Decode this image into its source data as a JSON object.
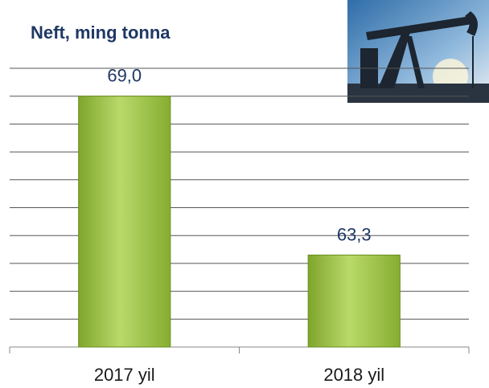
{
  "chart_data": {
    "type": "bar",
    "title": "Neft, ming tonna",
    "categories": [
      "2017 yil",
      "2018 yil"
    ],
    "values": [
      69.0,
      63.3
    ],
    "value_labels": [
      "69,0",
      "63,3"
    ],
    "color": "#9cc43f",
    "ylim": [
      60,
      70
    ],
    "yticks": [
      60,
      61,
      62,
      63,
      64,
      65,
      66,
      67,
      68,
      69,
      70
    ],
    "grid": true
  }
}
